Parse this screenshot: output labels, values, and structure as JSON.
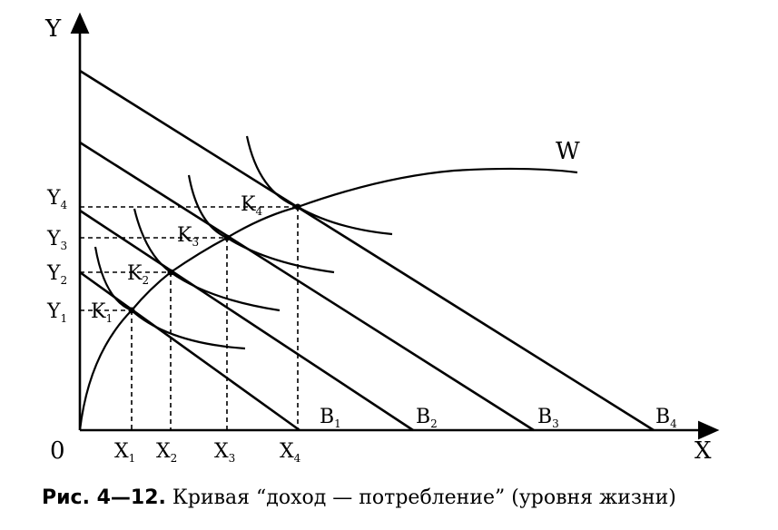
{
  "diagram": {
    "axes": {
      "y_label": "Y",
      "x_label": "X",
      "origin_label": "0"
    },
    "curve_label": "W",
    "points": [
      {
        "k": "K",
        "k_sub": "1",
        "x": "X",
        "x_sub": "1",
        "y": "Y",
        "y_sub": "1"
      },
      {
        "k": "K",
        "k_sub": "2",
        "x": "X",
        "x_sub": "2",
        "y": "Y",
        "y_sub": "2"
      },
      {
        "k": "K",
        "k_sub": "3",
        "x": "X",
        "x_sub": "3",
        "y": "Y",
        "y_sub": "3"
      },
      {
        "k": "K",
        "k_sub": "4",
        "x": "X",
        "x_sub": "4",
        "y": "Y",
        "y_sub": "4"
      }
    ],
    "budget_lines": [
      {
        "label": "B",
        "sub": "1"
      },
      {
        "label": "B",
        "sub": "2"
      },
      {
        "label": "B",
        "sub": "3"
      },
      {
        "label": "B",
        "sub": "4"
      }
    ]
  },
  "caption": {
    "prefix": "Рис. 4—12.",
    "text": "Кривая “доход — потребление” (уровня жизни)"
  }
}
